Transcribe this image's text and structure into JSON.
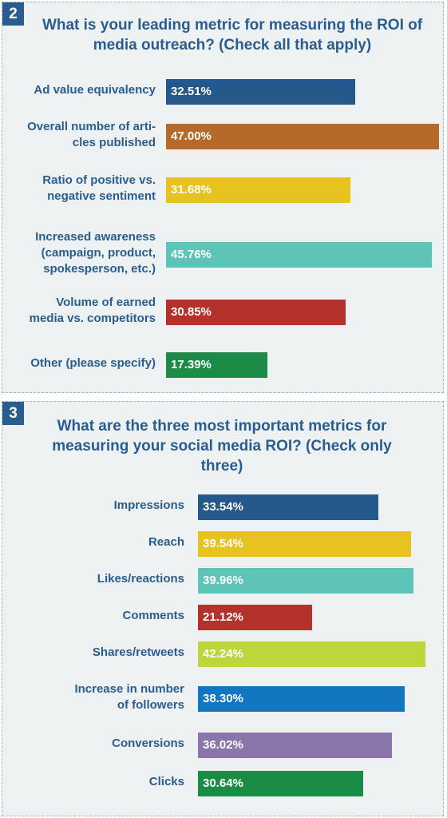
{
  "colors": {
    "panel_bg": "#eef1f1",
    "title": "#2a5d8f",
    "badge_bg": "#2a5d8f"
  },
  "panels": [
    {
      "badge": "2",
      "title": "What is your leading metric for measuring the ROI of media outreach? (Check all that apply)"
    },
    {
      "badge": "3",
      "title": "What are the three most important metrics for measuring your social media ROI? (Check only three)"
    }
  ],
  "chart_data": [
    {
      "type": "bar",
      "orientation": "horizontal",
      "title": "What is your leading metric for measuring the ROI of media outreach? (Check all that apply)",
      "categories": [
        "Ad value equivalency",
        "Overall number of arti-\ncles published",
        "Ratio of positive vs.\nnegative sentiment",
        "Increased awareness\n(campaign, product,\nspokesperson, etc.)",
        "Volume of earned\nmedia vs. competitors",
        "Other (please specify)"
      ],
      "values": [
        32.51,
        47.0,
        31.68,
        45.76,
        30.85,
        17.39
      ],
      "labels": [
        "32.51%",
        "47.00%",
        "31.68%",
        "45.76%",
        "30.85%",
        "17.39%"
      ],
      "colors": [
        "#24578a",
        "#b5692a",
        "#e7c31f",
        "#5ec4b7",
        "#b4322b",
        "#1b8c45"
      ],
      "unit": "%"
    },
    {
      "type": "bar",
      "orientation": "horizontal",
      "title": "What are the three most important metrics for measuring your social media ROI? (Check only three)",
      "categories": [
        "Impressions",
        "Reach",
        "Likes/reactions",
        "Comments",
        "Shares/retweets",
        "Increase in number\nof followers",
        "Conversions",
        "Clicks"
      ],
      "values": [
        33.54,
        39.54,
        39.96,
        21.12,
        42.24,
        38.3,
        36.02,
        30.64
      ],
      "labels": [
        "33.54%",
        "39.54%",
        "39.96%",
        "21.12%",
        "42.24%",
        "38.30%",
        "36.02%",
        "30.64%"
      ],
      "colors": [
        "#24578a",
        "#e7c31f",
        "#5ec4b7",
        "#b4322b",
        "#bcd63b",
        "#1177c0",
        "#8b76ac",
        "#1b8c45"
      ],
      "unit": "%"
    }
  ]
}
